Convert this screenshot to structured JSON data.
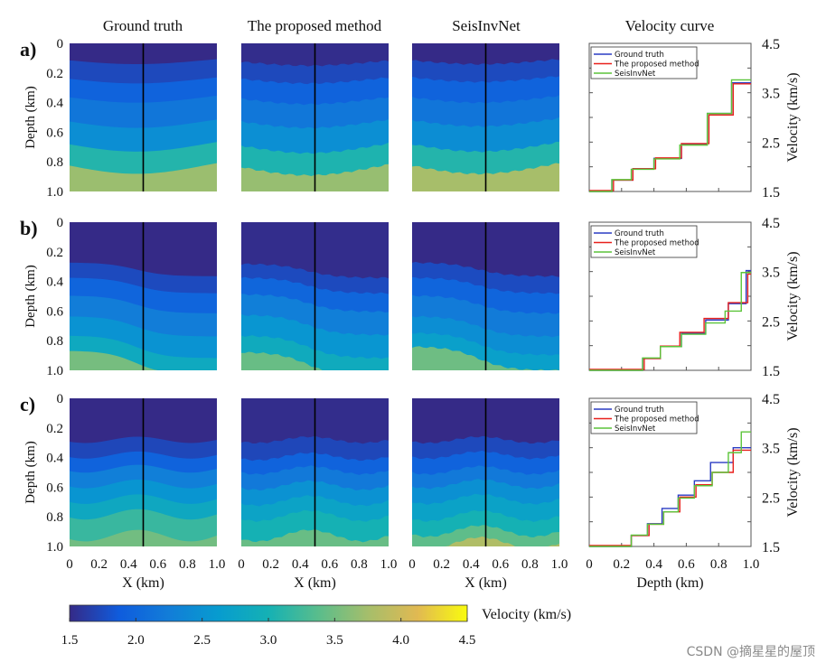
{
  "column_titles": [
    "Ground truth",
    "The proposed method",
    "SeisInvNet",
    "Velocity curve"
  ],
  "row_labels": [
    "a)",
    "b)",
    "c)"
  ],
  "image_axis": {
    "ylabel": "Depth (km)",
    "xlabel": "X (km)",
    "yticks": [
      "0",
      "0.2",
      "0.4",
      "0.6",
      "0.8",
      "1.0"
    ],
    "xticks": [
      "0",
      "0.2",
      "0.4",
      "0.6",
      "0.8",
      "1.0"
    ]
  },
  "curve_axis": {
    "xlabel": "Depth (km)",
    "ylabel": "Velocity (km/s)",
    "xlim": [
      0,
      1
    ],
    "ylim": [
      1.5,
      4.5
    ],
    "xticks": [
      "0",
      "0.2",
      "0.4",
      "0.6",
      "0.8",
      "1.0"
    ],
    "yticks": [
      "1.5",
      "2.5",
      "3.5",
      "4.5"
    ]
  },
  "legend": [
    {
      "name": "Ground truth",
      "color": "#2a3cc4"
    },
    {
      "name": "The proposed method",
      "color": "#e8201c"
    },
    {
      "name": "SeisInvNet",
      "color": "#5cc43a"
    }
  ],
  "colorbar": {
    "label": "Velocity (km/s)",
    "range": [
      1.5,
      4.5
    ],
    "colormap": "parula",
    "ticks": [
      "1.5",
      "2.0",
      "2.5",
      "3.0",
      "3.5",
      "4.0",
      "4.5"
    ]
  },
  "watermark": "CSDN @摘星星的屋顶",
  "chart_data": [
    {
      "type": "line",
      "row": "a)",
      "xlabel": "Depth (km)",
      "ylabel": "Velocity (km/s)",
      "xlim": [
        0,
        1
      ],
      "ylim": [
        1.5,
        4.5
      ],
      "series": [
        {
          "name": "Ground truth",
          "x": [
            0,
            0.14,
            0.27,
            0.4,
            0.57,
            0.73,
            0.88
          ],
          "values": [
            1.5,
            1.73,
            1.96,
            2.17,
            2.46,
            3.08,
            3.7
          ]
        },
        {
          "name": "The proposed method",
          "x": [
            0,
            0.15,
            0.27,
            0.41,
            0.57,
            0.74,
            0.89
          ],
          "values": [
            1.52,
            1.73,
            1.96,
            2.18,
            2.47,
            3.05,
            3.68
          ]
        },
        {
          "name": "SeisInvNet",
          "x": [
            0,
            0.14,
            0.26,
            0.4,
            0.56,
            0.73,
            0.88
          ],
          "values": [
            1.5,
            1.74,
            1.95,
            2.16,
            2.44,
            3.08,
            3.76
          ]
        }
      ]
    },
    {
      "type": "line",
      "row": "b)",
      "xlabel": "Depth (km)",
      "ylabel": "Velocity (km/s)",
      "xlim": [
        0,
        1
      ],
      "ylim": [
        1.5,
        4.5
      ],
      "series": [
        {
          "name": "Ground truth",
          "x": [
            0,
            0.33,
            0.44,
            0.57,
            0.72,
            0.86,
            0.97
          ],
          "values": [
            1.5,
            1.74,
            1.98,
            2.25,
            2.52,
            2.85,
            3.52
          ]
        },
        {
          "name": "The proposed method",
          "x": [
            0,
            0.34,
            0.44,
            0.56,
            0.71,
            0.86,
            0.98
          ],
          "values": [
            1.52,
            1.74,
            1.99,
            2.27,
            2.55,
            2.87,
            3.45
          ]
        },
        {
          "name": "SeisInvNet",
          "x": [
            0,
            0.33,
            0.44,
            0.57,
            0.72,
            0.84,
            0.94
          ],
          "values": [
            1.5,
            1.75,
            1.98,
            2.23,
            2.46,
            2.7,
            3.48
          ]
        }
      ]
    },
    {
      "type": "line",
      "row": "c)",
      "xlabel": "Depth (km)",
      "ylabel": "Velocity (km/s)",
      "xlim": [
        0,
        1
      ],
      "ylim": [
        1.5,
        4.5
      ],
      "series": [
        {
          "name": "Ground truth",
          "x": [
            0,
            0.26,
            0.36,
            0.45,
            0.55,
            0.65,
            0.75,
            0.89
          ],
          "values": [
            1.5,
            1.72,
            1.96,
            2.27,
            2.54,
            2.83,
            3.2,
            3.5
          ]
        },
        {
          "name": "The proposed method",
          "x": [
            0,
            0.26,
            0.37,
            0.46,
            0.56,
            0.66,
            0.76,
            0.89
          ],
          "values": [
            1.52,
            1.72,
            1.95,
            2.2,
            2.5,
            2.75,
            3.0,
            3.45
          ]
        },
        {
          "name": "SeisInvNet",
          "x": [
            0,
            0.26,
            0.36,
            0.46,
            0.55,
            0.65,
            0.76,
            0.86,
            0.94
          ],
          "values": [
            1.5,
            1.73,
            1.95,
            2.2,
            2.48,
            2.73,
            3.0,
            3.4,
            3.82
          ]
        }
      ]
    }
  ]
}
